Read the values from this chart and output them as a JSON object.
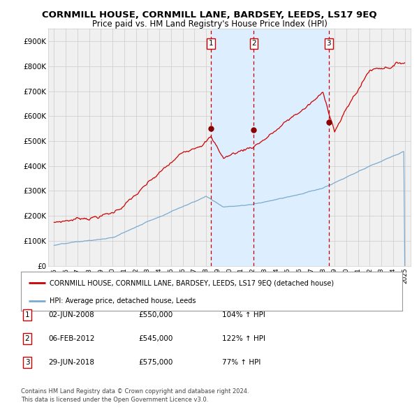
{
  "title": "CORNMILL HOUSE, CORNMILL LANE, BARDSEY, LEEDS, LS17 9EQ",
  "subtitle": "Price paid vs. HM Land Registry's House Price Index (HPI)",
  "title_fontsize": 9.5,
  "subtitle_fontsize": 8.5,
  "bg_color": "#ffffff",
  "plot_bg_color": "#f0f0f0",
  "grid_color": "#cccccc",
  "red_line_color": "#cc0000",
  "blue_line_color": "#7aaad0",
  "sale_marker_color": "#880000",
  "dashed_line_color": "#cc0000",
  "shade_color": "#ddeeff",
  "ylim": [
    0,
    950000
  ],
  "yticks": [
    0,
    100000,
    200000,
    300000,
    400000,
    500000,
    600000,
    700000,
    800000,
    900000
  ],
  "ytick_labels": [
    "£0",
    "£100K",
    "£200K",
    "£300K",
    "£400K",
    "£500K",
    "£600K",
    "£700K",
    "£800K",
    "£900K"
  ],
  "xlim_start": 1994.5,
  "xlim_end": 2025.5,
  "xticks": [
    1995,
    1996,
    1997,
    1998,
    1999,
    2000,
    2001,
    2002,
    2003,
    2004,
    2005,
    2006,
    2007,
    2008,
    2009,
    2010,
    2011,
    2012,
    2013,
    2014,
    2015,
    2016,
    2017,
    2018,
    2019,
    2020,
    2021,
    2022,
    2023,
    2024,
    2025
  ],
  "sale_dates": [
    2008.42,
    2012.09,
    2018.49
  ],
  "sale_prices": [
    550000,
    545000,
    575000
  ],
  "sale_labels": [
    "1",
    "2",
    "3"
  ],
  "sale_info": [
    {
      "label": "1",
      "date": "02-JUN-2008",
      "price": "£550,000",
      "pct": "104%",
      "arrow": "↑",
      "text": "HPI"
    },
    {
      "label": "2",
      "date": "06-FEB-2012",
      "price": "£545,000",
      "pct": "122%",
      "arrow": "↑",
      "text": "HPI"
    },
    {
      "label": "3",
      "date": "29-JUN-2018",
      "price": "£575,000",
      "pct": "77%",
      "arrow": "↑",
      "text": "HPI"
    }
  ],
  "legend_line1": "CORNMILL HOUSE, CORNMILL LANE, BARDSEY, LEEDS, LS17 9EQ (detached house)",
  "legend_line2": "HPI: Average price, detached house, Leeds",
  "footer1": "Contains HM Land Registry data © Crown copyright and database right 2024.",
  "footer2": "This data is licensed under the Open Government Licence v3.0."
}
